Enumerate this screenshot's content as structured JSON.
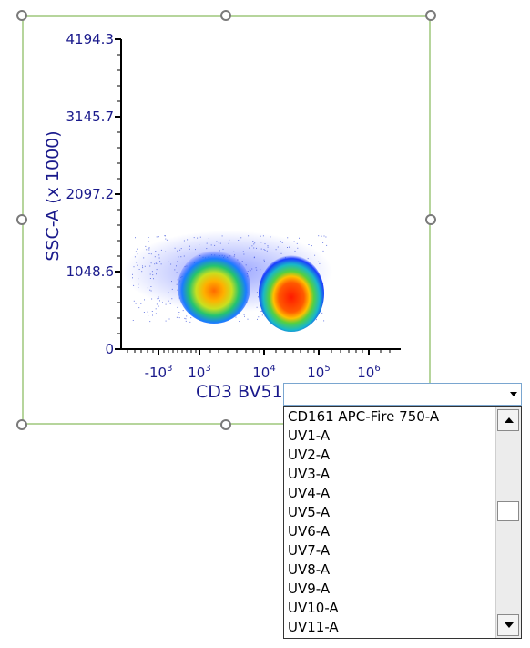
{
  "plot": {
    "y_axis_label": "SSC-A (x 1000)",
    "x_axis_label": "CD3 BV51",
    "y_ticks": [
      "4194.3",
      "3145.7",
      "2097.2",
      "1048.6",
      "0"
    ],
    "x_ticks": [
      {
        "base": "-10",
        "exp": "3"
      },
      {
        "base": "10",
        "exp": "3"
      },
      {
        "base": "10",
        "exp": "4"
      },
      {
        "base": "10",
        "exp": "5"
      },
      {
        "base": "10",
        "exp": "6"
      }
    ]
  },
  "dropdown": {
    "selected_value": "",
    "options": [
      "CD161 APC-Fire 750-A",
      "UV1-A",
      "UV2-A",
      "UV3-A",
      "UV4-A",
      "UV5-A",
      "UV6-A",
      "UV7-A",
      "UV8-A",
      "UV9-A",
      "UV10-A",
      "UV11-A"
    ]
  },
  "colors": {
    "axis_text": "#1a1a8c",
    "frame_border": "#b6d59c",
    "density_low": "#1a3cff",
    "density_mid": "#22c56a",
    "density_high": "#ff2000"
  }
}
